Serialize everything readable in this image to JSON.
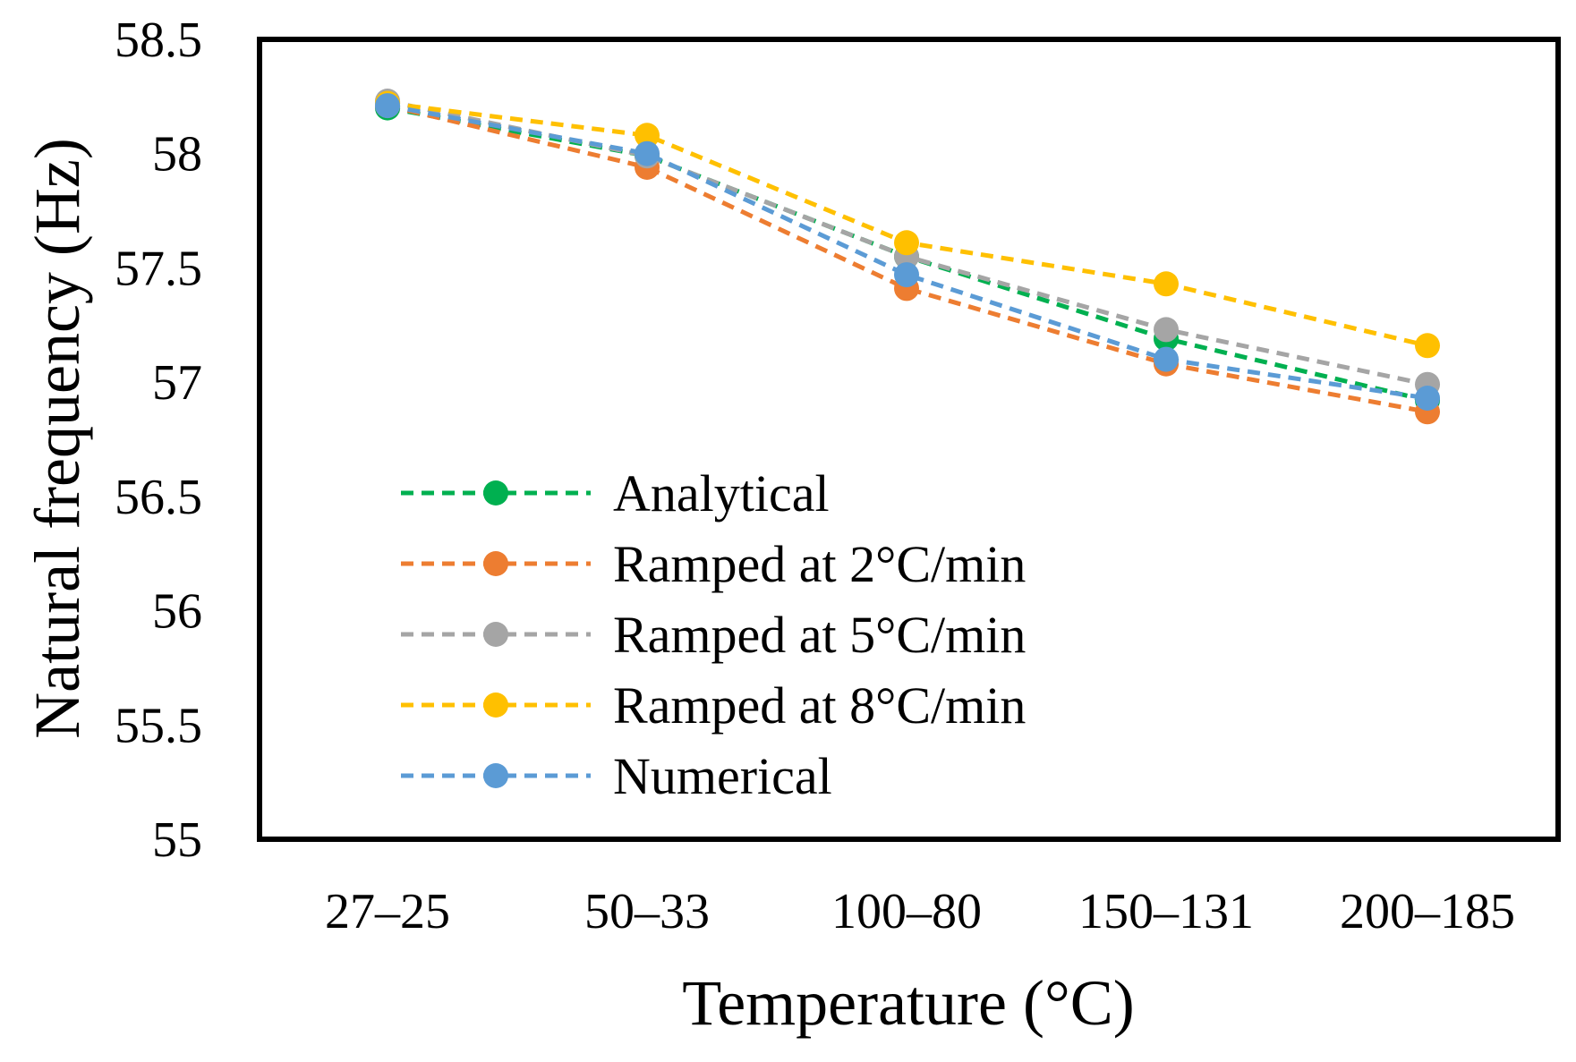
{
  "chart_data": {
    "type": "line",
    "title": "",
    "xlabel": "Temperature (°C)",
    "ylabel": "Natural frequency (Hz)",
    "categories": [
      "27–25",
      "50–33",
      "100–80",
      "150–131",
      "200–185"
    ],
    "ylim": [
      55,
      58.5
    ],
    "yticks": [
      "55",
      "55.5",
      "56",
      "56.5",
      "57",
      "57.5",
      "58",
      "58.5"
    ],
    "ytick_values": [
      55,
      55.5,
      56,
      56.5,
      57,
      57.5,
      58,
      58.5
    ],
    "grid": false,
    "legend_position": "bottom-left",
    "series": [
      {
        "name": "Analytical",
        "color": "#00B050",
        "values": [
          58.2,
          57.99,
          57.55,
          57.19,
          56.92
        ]
      },
      {
        "name": "Ramped at 2°C/min",
        "color": "#ED7D31",
        "values": [
          58.21,
          57.94,
          57.41,
          57.08,
          56.87
        ]
      },
      {
        "name": "Ramped at 5°C/min",
        "color": "#A5A5A5",
        "values": [
          58.23,
          57.99,
          57.55,
          57.23,
          56.99
        ]
      },
      {
        "name": "Ramped at 8°C/min",
        "color": "#FFC000",
        "values": [
          58.22,
          58.08,
          57.61,
          57.43,
          57.16
        ]
      },
      {
        "name": "Numerical",
        "color": "#5B9BD5",
        "values": [
          58.21,
          58.0,
          57.47,
          57.1,
          56.93
        ]
      }
    ]
  }
}
